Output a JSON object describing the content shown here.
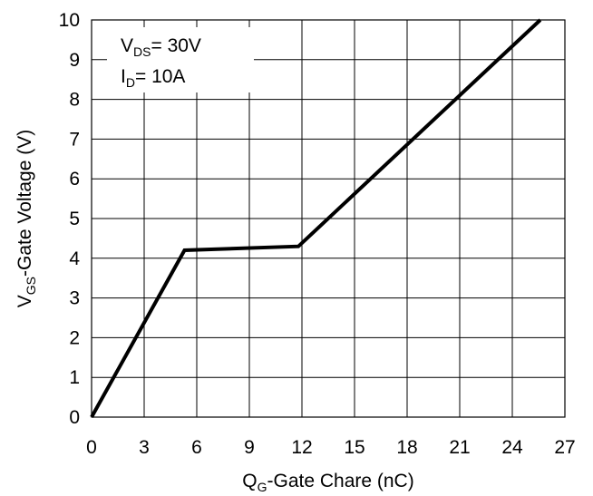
{
  "chart_data": {
    "type": "line",
    "title": "",
    "xlabel": {
      "main": "Q",
      "sub": "G",
      "rest": "-Gate Chare (nC)"
    },
    "ylabel": {
      "main": "V",
      "sub": "GS",
      "rest": "-Gate Voltage (V)"
    },
    "xlim": [
      0,
      27
    ],
    "ylim": [
      0,
      10
    ],
    "xticks": [
      "0",
      "3",
      "6",
      "9",
      "12",
      "15",
      "18",
      "21",
      "24",
      "27"
    ],
    "yticks": [
      "0",
      "1",
      "2",
      "3",
      "4",
      "5",
      "6",
      "7",
      "8",
      "9",
      "10"
    ],
    "grid": true,
    "series": [
      {
        "x": [
          0,
          5.3,
          11.8,
          25.6
        ],
        "y": [
          0,
          4.2,
          4.3,
          10
        ],
        "color": "#000000"
      }
    ],
    "annotations": [
      {
        "main": "V",
        "sub": "DS",
        "rest": "= 30V"
      },
      {
        "main": "I",
        "sub": "D",
        "rest": "= 10A"
      }
    ]
  }
}
